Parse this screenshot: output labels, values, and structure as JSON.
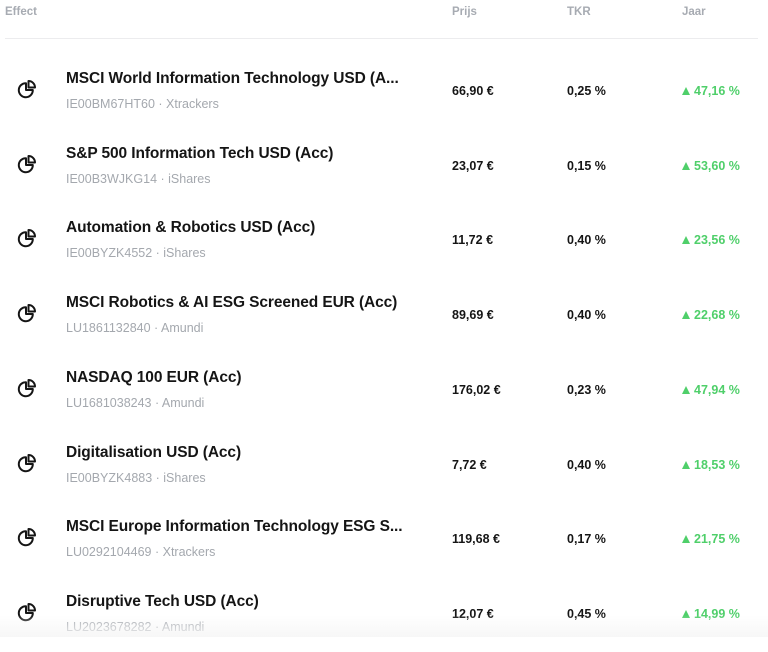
{
  "header": {
    "effect": "Effect",
    "prijs": "Prijs",
    "tkr": "TKR",
    "jaar": "Jaar"
  },
  "colors": {
    "positive": "#4fcf6a",
    "muted": "#a4a8ae",
    "text": "#151515"
  },
  "rows": [
    {
      "icon": "pie-chart-icon",
      "name": "MSCI World Information Technology USD (A...",
      "sub": "IE00BM67HT60 · Xtrackers",
      "prijs": "66,90 €",
      "tkr": "0,25 %",
      "jaar": "47,16 %",
      "trend": "up"
    },
    {
      "icon": "pie-chart-icon",
      "name": "S&P 500 Information Tech USD (Acc)",
      "sub": "IE00B3WJKG14 · iShares",
      "prijs": "23,07 €",
      "tkr": "0,15 %",
      "jaar": "53,60 %",
      "trend": "up"
    },
    {
      "icon": "pie-chart-icon",
      "name": "Automation & Robotics USD (Acc)",
      "sub": "IE00BYZK4552 · iShares",
      "prijs": "11,72 €",
      "tkr": "0,40 %",
      "jaar": "23,56 %",
      "trend": "up"
    },
    {
      "icon": "pie-chart-icon",
      "name": "MSCI Robotics & AI ESG Screened EUR (Acc)",
      "sub": "LU1861132840 · Amundi",
      "prijs": "89,69 €",
      "tkr": "0,40 %",
      "jaar": "22,68 %",
      "trend": "up"
    },
    {
      "icon": "pie-chart-icon",
      "name": "NASDAQ 100 EUR (Acc)",
      "sub": "LU1681038243 · Amundi",
      "prijs": "176,02 €",
      "tkr": "0,23 %",
      "jaar": "47,94 %",
      "trend": "up"
    },
    {
      "icon": "pie-chart-icon",
      "name": "Digitalisation USD (Acc)",
      "sub": "IE00BYZK4883 · iShares",
      "prijs": "7,72 €",
      "tkr": "0,40 %",
      "jaar": "18,53 %",
      "trend": "up"
    },
    {
      "icon": "pie-chart-icon",
      "name": "MSCI Europe Information Technology ESG S...",
      "sub": "LU0292104469 · Xtrackers",
      "prijs": "119,68 €",
      "tkr": "0,17 %",
      "jaar": "21,75 %",
      "trend": "up"
    },
    {
      "icon": "pie-chart-icon",
      "name": "Disruptive Tech USD (Acc)",
      "sub": "LU2023678282 · Amundi",
      "prijs": "12,07 €",
      "tkr": "0,45 %",
      "jaar": "14,99 %",
      "trend": "up"
    }
  ]
}
